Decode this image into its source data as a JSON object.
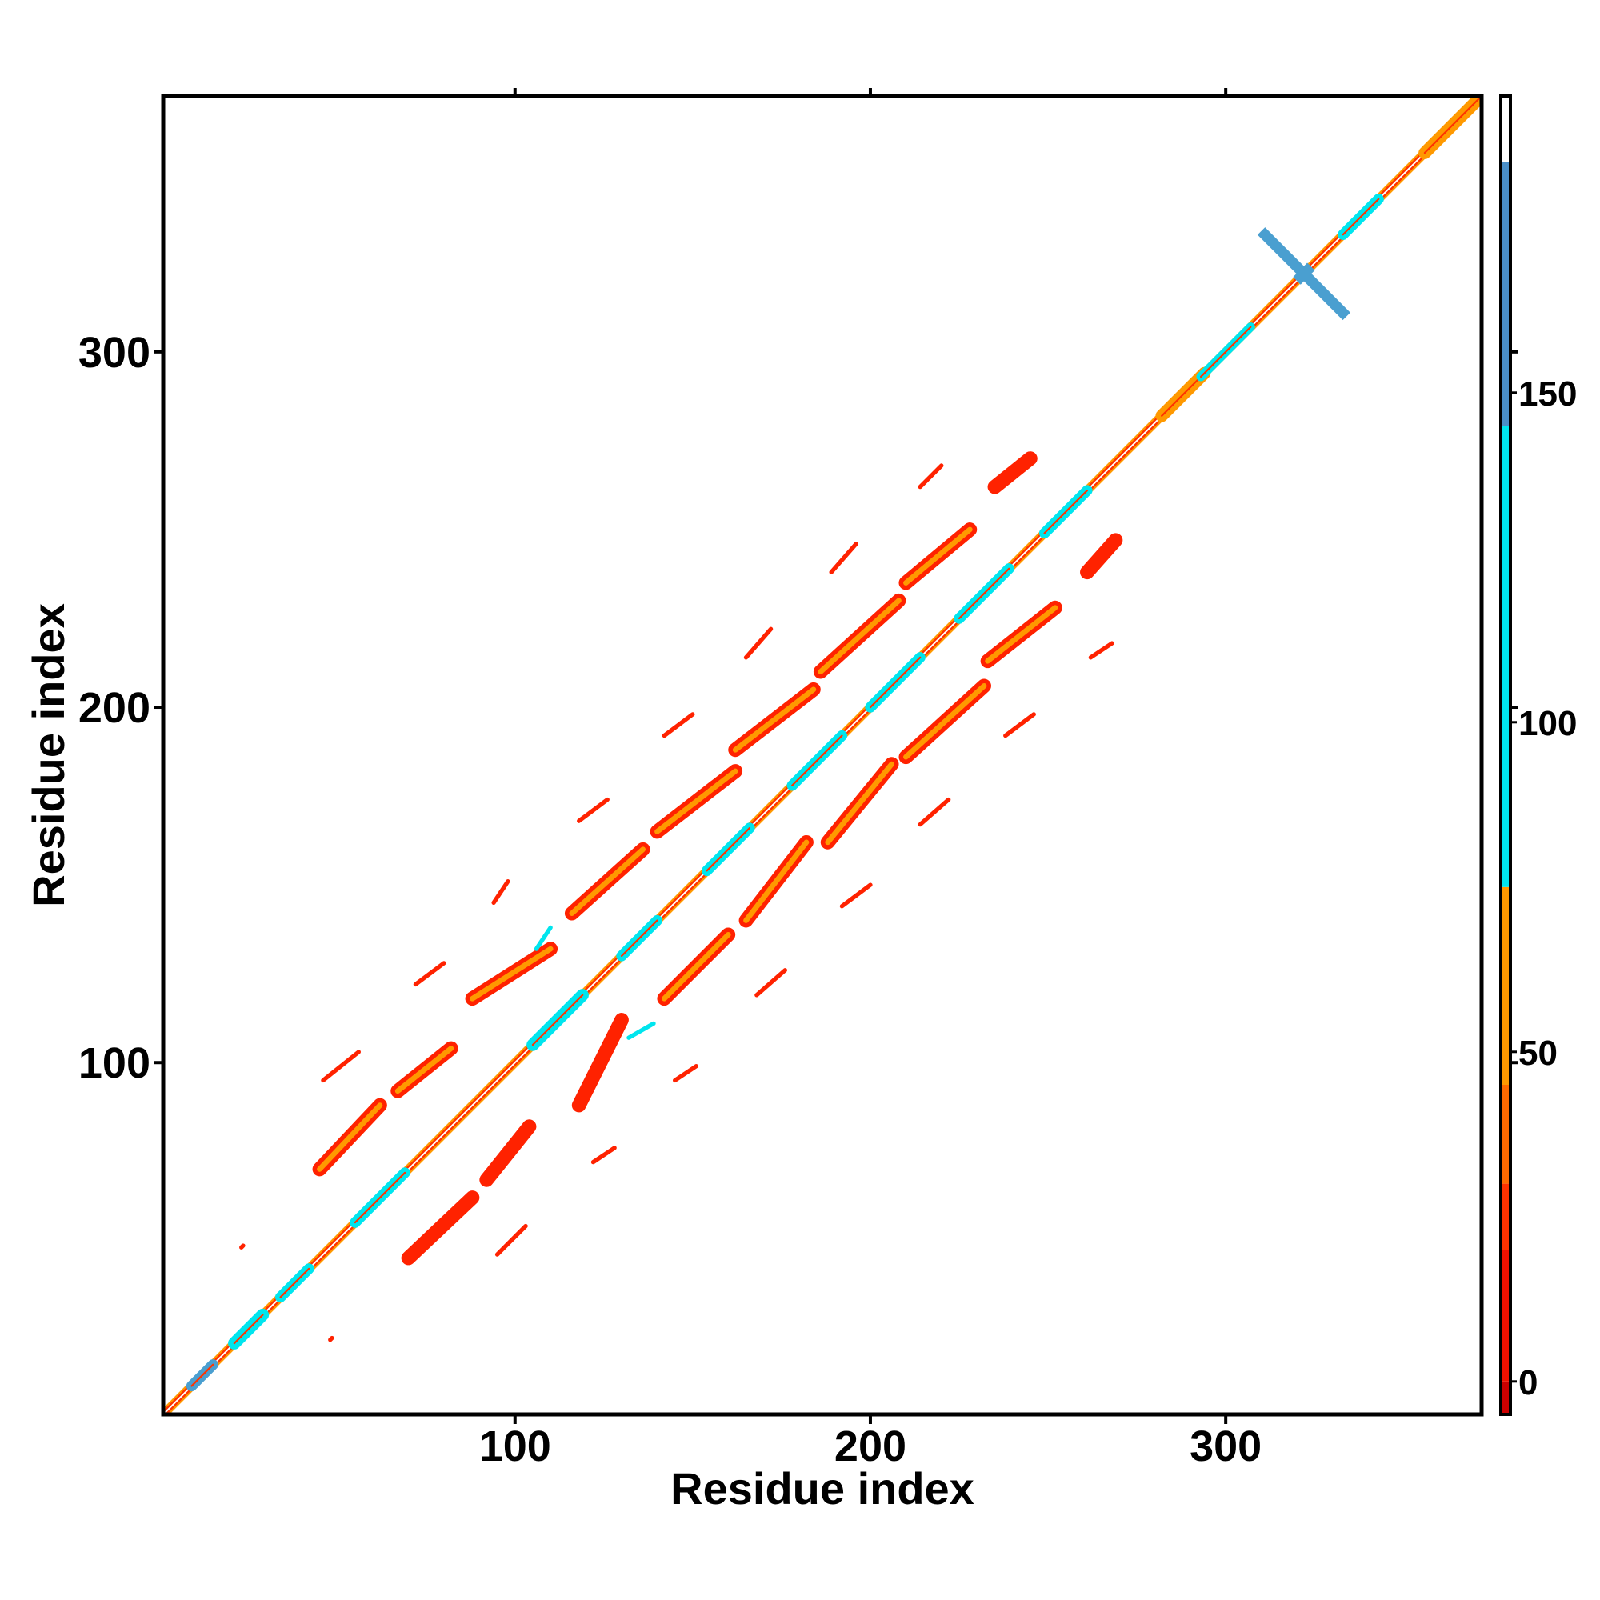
{
  "chart_data": {
    "type": "heatmap",
    "title": "",
    "xlabel": "Residue index",
    "ylabel": "Residue index",
    "xlim": [
      1,
      372
    ],
    "ylim": [
      1,
      372
    ],
    "x_ticks": [
      100,
      200,
      300
    ],
    "y_ticks": [
      100,
      200,
      300
    ],
    "grid": false,
    "colorbar": {
      "ticks": [
        0,
        50,
        100,
        150
      ],
      "range": [
        -5,
        195
      ],
      "segments": [
        {
          "from": -5,
          "to": 0,
          "color": "#cc0000"
        },
        {
          "from": 0,
          "to": 20,
          "color": "#ee1100"
        },
        {
          "from": 20,
          "to": 30,
          "color": "#ff3300"
        },
        {
          "from": 30,
          "to": 45,
          "color": "#ff6a00"
        },
        {
          "from": 45,
          "to": 75,
          "color": "#ff9900"
        },
        {
          "from": 75,
          "to": 145,
          "color": "#00e5ee"
        },
        {
          "from": 145,
          "to": 185,
          "color": "#4a8fc8"
        },
        {
          "from": 185,
          "to": 195,
          "color": "#ffffff"
        }
      ]
    },
    "diagonal": {
      "from": 1,
      "to": 372,
      "band_width": 2.5
    },
    "diagonal_features": [
      {
        "center": 12,
        "length": 6,
        "color": "#4a9fd0",
        "width": 3
      },
      {
        "center": 25,
        "length": 8,
        "color": "#00e5ee",
        "width": 3.5
      },
      {
        "center": 38,
        "length": 8,
        "color": "#00e5ee",
        "width": 3
      },
      {
        "center": 62,
        "length": 14,
        "color": "#00e5ee",
        "width": 3
      },
      {
        "center": 112,
        "length": 14,
        "color": "#00e5ee",
        "width": 3.5
      },
      {
        "center": 135,
        "length": 10,
        "color": "#00e5ee",
        "width": 3
      },
      {
        "center": 160,
        "length": 12,
        "color": "#00e5ee",
        "width": 3
      },
      {
        "center": 185,
        "length": 14,
        "color": "#00e5ee",
        "width": 3
      },
      {
        "center": 207,
        "length": 14,
        "color": "#00e5ee",
        "width": 3
      },
      {
        "center": 232,
        "length": 14,
        "color": "#00e5ee",
        "width": 3
      },
      {
        "center": 255,
        "length": 12,
        "color": "#00e5ee",
        "width": 3
      },
      {
        "center": 288,
        "length": 12,
        "color": "#ff9900",
        "width": 3.5
      },
      {
        "center": 300,
        "length": 14,
        "color": "#00e5ee",
        "width": 2.5
      },
      {
        "center": 338,
        "length": 10,
        "color": "#00e5ee",
        "width": 3
      },
      {
        "center": 364,
        "length": 16,
        "color": "#ff9900",
        "width": 3.5
      }
    ],
    "contact_strips": [
      {
        "x1": 45,
        "y1": 70,
        "x2": 62,
        "y2": 88,
        "color": "#ff2200",
        "width": 4
      },
      {
        "x1": 45,
        "y1": 70,
        "x2": 62,
        "y2": 88,
        "color": "#ff9900",
        "width": 1.5
      },
      {
        "x1": 67,
        "y1": 92,
        "x2": 82,
        "y2": 104,
        "color": "#ff2200",
        "width": 4
      },
      {
        "x1": 67,
        "y1": 92,
        "x2": 82,
        "y2": 104,
        "color": "#ff9900",
        "width": 1.5
      },
      {
        "x1": 70,
        "y1": 45,
        "x2": 88,
        "y2": 62,
        "color": "#ff2200",
        "width": 4
      },
      {
        "x1": 92,
        "y1": 67,
        "x2": 104,
        "y2": 82,
        "color": "#ff2200",
        "width": 4
      },
      {
        "x1": 88,
        "y1": 118,
        "x2": 110,
        "y2": 132,
        "color": "#ff2200",
        "width": 4
      },
      {
        "x1": 88,
        "y1": 118,
        "x2": 110,
        "y2": 132,
        "color": "#ff9900",
        "width": 1.5
      },
      {
        "x1": 118,
        "y1": 88,
        "x2": 130,
        "y2": 112,
        "color": "#ff2200",
        "width": 4
      },
      {
        "x1": 116,
        "y1": 142,
        "x2": 136,
        "y2": 160,
        "color": "#ff2200",
        "width": 4
      },
      {
        "x1": 116,
        "y1": 142,
        "x2": 136,
        "y2": 160,
        "color": "#ff9900",
        "width": 1.5
      },
      {
        "x1": 142,
        "y1": 118,
        "x2": 160,
        "y2": 136,
        "color": "#ff2200",
        "width": 4
      },
      {
        "x1": 142,
        "y1": 118,
        "x2": 160,
        "y2": 136,
        "color": "#ff9900",
        "width": 1.5
      },
      {
        "x1": 140,
        "y1": 165,
        "x2": 162,
        "y2": 182,
        "color": "#ff2200",
        "width": 4
      },
      {
        "x1": 140,
        "y1": 165,
        "x2": 162,
        "y2": 182,
        "color": "#ff9900",
        "width": 1.5
      },
      {
        "x1": 165,
        "y1": 140,
        "x2": 182,
        "y2": 162,
        "color": "#ff2200",
        "width": 4
      },
      {
        "x1": 165,
        "y1": 140,
        "x2": 182,
        "y2": 162,
        "color": "#ff9900",
        "width": 1.5
      },
      {
        "x1": 162,
        "y1": 188,
        "x2": 184,
        "y2": 205,
        "color": "#ff2200",
        "width": 4
      },
      {
        "x1": 162,
        "y1": 188,
        "x2": 184,
        "y2": 205,
        "color": "#ff9900",
        "width": 1.5
      },
      {
        "x1": 188,
        "y1": 162,
        "x2": 206,
        "y2": 184,
        "color": "#ff2200",
        "width": 4
      },
      {
        "x1": 188,
        "y1": 162,
        "x2": 206,
        "y2": 184,
        "color": "#ff9900",
        "width": 1.5
      },
      {
        "x1": 186,
        "y1": 210,
        "x2": 208,
        "y2": 230,
        "color": "#ff2200",
        "width": 4
      },
      {
        "x1": 186,
        "y1": 210,
        "x2": 208,
        "y2": 230,
        "color": "#ff9900",
        "width": 1.5
      },
      {
        "x1": 210,
        "y1": 186,
        "x2": 232,
        "y2": 206,
        "color": "#ff2200",
        "width": 4
      },
      {
        "x1": 210,
        "y1": 186,
        "x2": 232,
        "y2": 206,
        "color": "#ff9900",
        "width": 1.5
      },
      {
        "x1": 210,
        "y1": 235,
        "x2": 228,
        "y2": 250,
        "color": "#ff2200",
        "width": 4
      },
      {
        "x1": 210,
        "y1": 235,
        "x2": 228,
        "y2": 250,
        "color": "#ff9900",
        "width": 1.5
      },
      {
        "x1": 233,
        "y1": 213,
        "x2": 252,
        "y2": 228,
        "color": "#ff2200",
        "width": 4
      },
      {
        "x1": 233,
        "y1": 213,
        "x2": 252,
        "y2": 228,
        "color": "#ff9900",
        "width": 1.5
      },
      {
        "x1": 235,
        "y1": 262,
        "x2": 245,
        "y2": 270,
        "color": "#ff2200",
        "width": 4
      },
      {
        "x1": 261,
        "y1": 238,
        "x2": 269,
        "y2": 247,
        "color": "#ff2200",
        "width": 4
      }
    ],
    "satellite_dashes": [
      {
        "x1": 46,
        "y1": 95,
        "x2": 56,
        "y2": 103,
        "color": "#ff2200"
      },
      {
        "x1": 72,
        "y1": 122,
        "x2": 80,
        "y2": 128,
        "color": "#ff2200"
      },
      {
        "x1": 94,
        "y1": 145,
        "x2": 98,
        "y2": 151,
        "color": "#ff2200"
      },
      {
        "x1": 118,
        "y1": 168,
        "x2": 126,
        "y2": 174,
        "color": "#ff2200"
      },
      {
        "x1": 142,
        "y1": 192,
        "x2": 150,
        "y2": 198,
        "color": "#ff2200"
      },
      {
        "x1": 165,
        "y1": 214,
        "x2": 172,
        "y2": 222,
        "color": "#ff2200"
      },
      {
        "x1": 189,
        "y1": 238,
        "x2": 196,
        "y2": 246,
        "color": "#ff2200"
      },
      {
        "x1": 214,
        "y1": 262,
        "x2": 220,
        "y2": 268,
        "color": "#ff2200"
      },
      {
        "x1": 95,
        "y1": 46,
        "x2": 103,
        "y2": 54,
        "color": "#ff2200"
      },
      {
        "x1": 122,
        "y1": 72,
        "x2": 128,
        "y2": 76,
        "color": "#ff2200"
      },
      {
        "x1": 145,
        "y1": 95,
        "x2": 151,
        "y2": 99,
        "color": "#ff2200"
      },
      {
        "x1": 168,
        "y1": 119,
        "x2": 176,
        "y2": 126,
        "color": "#ff2200"
      },
      {
        "x1": 192,
        "y1": 144,
        "x2": 200,
        "y2": 150,
        "color": "#ff2200"
      },
      {
        "x1": 214,
        "y1": 167,
        "x2": 222,
        "y2": 174,
        "color": "#ff2200"
      },
      {
        "x1": 238,
        "y1": 192,
        "x2": 246,
        "y2": 198,
        "color": "#ff2200"
      },
      {
        "x1": 262,
        "y1": 214,
        "x2": 268,
        "y2": 218,
        "color": "#ff2200"
      },
      {
        "x1": 132,
        "y1": 107,
        "x2": 139,
        "y2": 111,
        "color": "#00e5ee"
      },
      {
        "x1": 106,
        "y1": 132,
        "x2": 110,
        "y2": 138,
        "color": "#00e5ee"
      },
      {
        "x1": 23,
        "y1": 48,
        "x2": 23.5,
        "y2": 48.5,
        "color": "#ff2200"
      },
      {
        "x1": 48,
        "y1": 22,
        "x2": 48.5,
        "y2": 22.5,
        "color": "#ff2200"
      }
    ],
    "cross_marker": {
      "center": 322,
      "half_length": 12,
      "color": "#4a9fd0",
      "width": 3
    }
  }
}
